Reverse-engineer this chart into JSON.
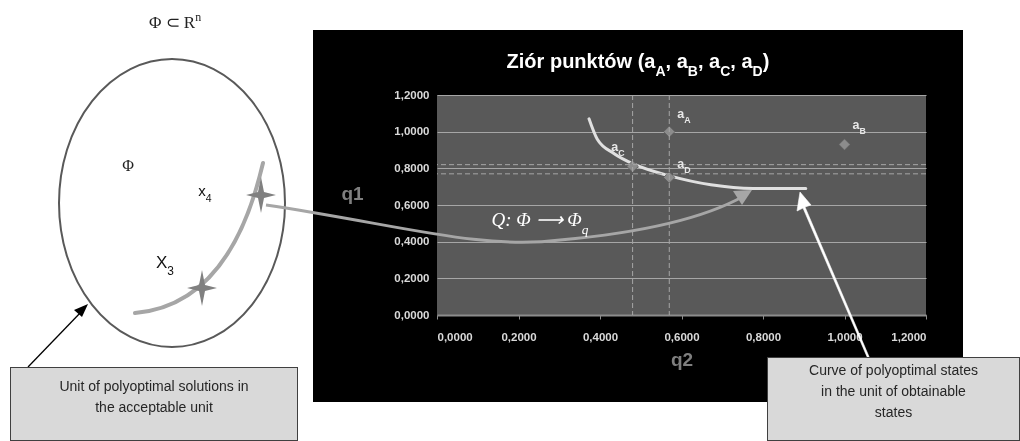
{
  "chart_data": {
    "type": "scatter",
    "title": "Ziór punktów (a$_{A}$, a$_{B}$, a$_{C}$, a$_{D}$)",
    "xlabel": "q2",
    "ylabel": "q1",
    "xlim": [
      0,
      1.2
    ],
    "ylim": [
      0,
      1.2
    ],
    "xticks": [
      {
        "value": 0,
        "label": "0,0000"
      },
      {
        "value": 0.2,
        "label": "0,2000"
      },
      {
        "value": 0.4,
        "label": "0,4000"
      },
      {
        "value": 0.6,
        "label": "0,6000"
      },
      {
        "value": 0.8,
        "label": "0,8000"
      },
      {
        "value": 1.0,
        "label": "1,0000"
      },
      {
        "value": 1.2,
        "label": "1,2000"
      }
    ],
    "yticks": [
      {
        "value": 0,
        "label": "0,0000"
      },
      {
        "value": 0.2,
        "label": "0,2000"
      },
      {
        "value": 0.4,
        "label": "0,4000"
      },
      {
        "value": 0.6,
        "label": "0,6000"
      },
      {
        "value": 0.8,
        "label": "0,8000"
      },
      {
        "value": 1.0,
        "label": "1,0000"
      },
      {
        "value": 1.2,
        "label": "1,2000"
      }
    ],
    "grid": "y",
    "series": [
      {
        "type": "line",
        "color": "#e0e0e0",
        "marker": "none",
        "x": [
          0.373,
          0.393,
          0.435,
          0.486,
          0.569,
          0.672,
          0.776,
          0.905
        ],
        "values": [
          1.07,
          0.96,
          0.88,
          0.82,
          0.76,
          0.71,
          0.69,
          0.69
        ]
      },
      {
        "type": "scatter",
        "color": "#8c8c8c",
        "marker": "diamond",
        "x": [
          0.57,
          1.0,
          0.48,
          0.57
        ],
        "values": [
          1.0,
          0.93,
          0.81,
          0.75
        ]
      }
    ],
    "ref_lines": [
      {
        "axis": "x",
        "value": 0.48,
        "color": "#a6a6a6",
        "line_style": "dashed"
      },
      {
        "axis": "x",
        "value": 0.57,
        "color": "#a6a6a6",
        "line_style": "dashed"
      },
      {
        "axis": "y",
        "value": 0.82,
        "color": "#a6a6a6",
        "line_style": "dashed"
      },
      {
        "axis": "y",
        "value": 0.77,
        "color": "#a6a6a6",
        "line_style": "dashed"
      }
    ],
    "annotations": [
      {
        "text": "a$_{A}$",
        "x": 0.57,
        "y": 1.0
      },
      {
        "text": "a$_{B}$",
        "x": 1.0,
        "y": 0.93
      },
      {
        "text": "a$_{C}$",
        "x": 0.48,
        "y": 0.81
      },
      {
        "text": "a$_{D}$",
        "x": 0.57,
        "y": 0.75
      },
      "Φ ⊂ R$^{n}$",
      "Φ",
      "x$_{4}$",
      "X$_{3}$",
      "Q: Φ ⟶ Φ$_{q}$",
      "Unit of polyoptimal solutions in the acceptable unit",
      "Curve of polyoptimal states in the unit of obtainable states"
    ]
  }
}
